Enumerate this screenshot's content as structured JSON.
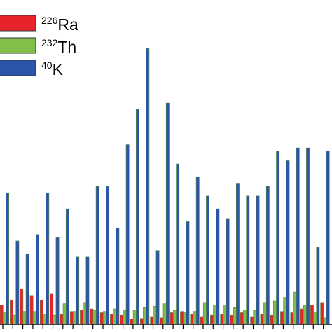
{
  "chart_data": {
    "type": "bar",
    "title": "",
    "xlabel": "",
    "ylabel": "",
    "grid": false,
    "legend_position": "top-left",
    "samples": 33,
    "series": [
      {
        "name_base": "Ra",
        "name_sup": "226",
        "color": "#e8232a",
        "values": [
          30,
          38,
          55,
          45,
          38,
          47,
          15,
          20,
          22,
          24,
          18,
          16,
          14,
          8,
          9,
          12,
          10,
          18,
          20,
          16,
          12,
          14,
          16,
          14,
          18,
          12,
          16,
          14,
          20,
          18,
          24,
          30,
          34
        ]
      },
      {
        "name_base": "Th",
        "name_sup": "232",
        "color": "#7fbf4a",
        "values": [
          18,
          14,
          20,
          20,
          16,
          14,
          32,
          20,
          34,
          22,
          20,
          24,
          22,
          22,
          26,
          28,
          32,
          22,
          18,
          20,
          34,
          30,
          30,
          26,
          22,
          22,
          34,
          36,
          42,
          50,
          30,
          18,
          10
        ]
      },
      {
        "name_base": "K",
        "name_sup": "40",
        "color": "#2a55a8",
        "values": [
          205,
          130,
          110,
          140,
          205,
          135,
          180,
          105,
          105,
          215,
          215,
          150,
          280,
          335,
          430,
          115,
          345,
          250,
          160,
          230,
          200,
          180,
          165,
          220,
          200,
          200,
          215,
          270,
          255,
          275,
          275,
          120,
          270
        ]
      }
    ],
    "ylim": [
      0,
      440
    ]
  }
}
